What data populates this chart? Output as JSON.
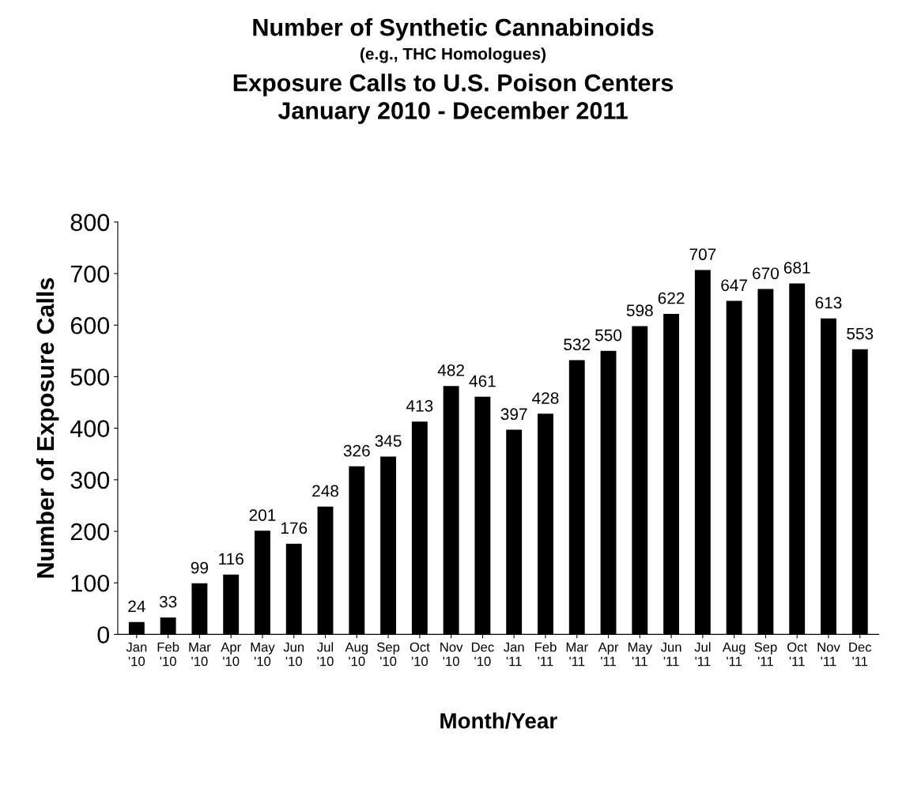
{
  "chart_data": {
    "type": "bar",
    "title": "Number of Synthetic Cannabinoids",
    "subtitle": "(e.g., THC Homologues)",
    "annotations": [
      "Exposure Calls to U.S. Poison Centers",
      "January 2010 - December 2011"
    ],
    "xlabel": "Month/Year",
    "ylabel": "Number of Exposure Calls",
    "categories": [
      "Jan\n'10",
      "Feb\n'10",
      "Mar\n'10",
      "Apr\n'10",
      "May\n'10",
      "Jun\n'10",
      "Jul\n'10",
      "Aug\n'10",
      "Sep\n'10",
      "Oct\n'10",
      "Nov\n'10",
      "Dec\n'10",
      "Jan\n'11",
      "Feb\n'11",
      "Mar\n'11",
      "Apr\n'11",
      "May\n'11",
      "Jun\n'11",
      "Jul\n'11",
      "Aug\n'11",
      "Sep\n'11",
      "Oct\n'11",
      "Nov\n'11",
      "Dec\n'11"
    ],
    "values": [
      24,
      33,
      99,
      116,
      201,
      176,
      248,
      326,
      345,
      413,
      482,
      461,
      397,
      428,
      532,
      550,
      598,
      622,
      707,
      647,
      670,
      681,
      613,
      553
    ],
    "color": "#000000",
    "ylim": [
      0,
      800
    ],
    "yticks": [
      0,
      100,
      200,
      300,
      400,
      500,
      600,
      700,
      800
    ],
    "data_labels": true,
    "grid": false,
    "legend": false
  }
}
